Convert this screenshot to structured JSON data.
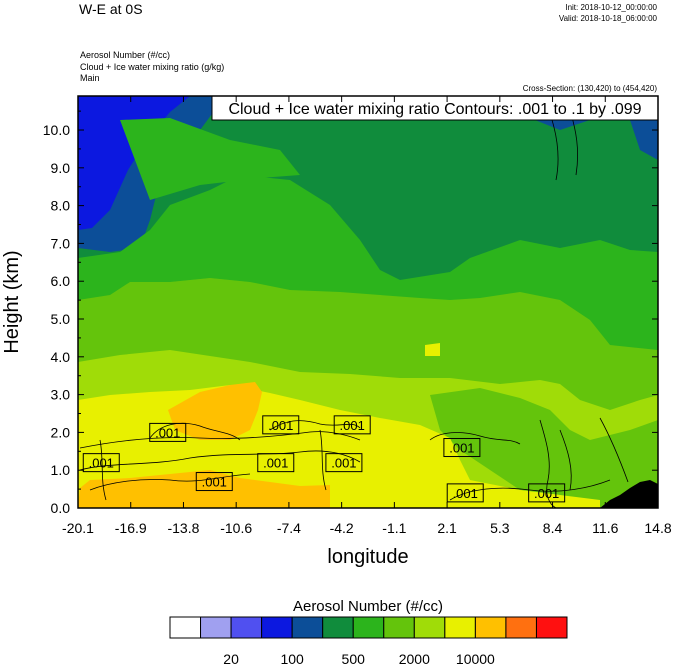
{
  "header": {
    "title": "W-E at 0S",
    "init": "Init: 2018-10-12_00:00:00",
    "valid": "Valid: 2018-10-18_06:00:00",
    "field1": "Aerosol Number   (#/cc)",
    "field2": "Cloud + Ice water mixing ratio   (g/kg)",
    "field3": "Main",
    "cross_section": "Cross-Section: (130,420) to (454,420)"
  },
  "chart_data": {
    "type": "heatmap",
    "title": "W-E at 0S",
    "xlabel": "longitude",
    "ylabel": "Height (km)",
    "xlim": [
      -20.1,
      14.8
    ],
    "ylim": [
      0.0,
      10.9
    ],
    "x_ticks": [
      "-20.1",
      "-16.9",
      "-13.8",
      "-10.6",
      "-7.4",
      "-4.2",
      "-1.1",
      "2.1",
      "5.3",
      "8.4",
      "11.6",
      "14.8"
    ],
    "y_ticks": [
      "0.0",
      "1.0",
      "2.0",
      "3.0",
      "4.0",
      "5.0",
      "6.0",
      "7.0",
      "8.0",
      "9.0",
      "10.0"
    ],
    "contour_legend": "Cloud + Ice water mixing ratio Contours: .001 to .1 by .099",
    "contour_levels": [
      0.001,
      0.1
    ],
    "contour_labels": [
      {
        "text": ".001",
        "lon": -18.7,
        "height": 1.2
      },
      {
        "text": ".001",
        "lon": -14.7,
        "height": 2.0
      },
      {
        "text": ".001",
        "lon": -11.9,
        "height": 0.7
      },
      {
        "text": ".001",
        "lon": -7.9,
        "height": 2.2
      },
      {
        "text": ".001",
        "lon": -8.2,
        "height": 1.2
      },
      {
        "text": ".001",
        "lon": -3.6,
        "height": 2.2
      },
      {
        "text": ".001",
        "lon": -4.1,
        "height": 1.2
      },
      {
        "text": ".001",
        "lon": 3.0,
        "height": 1.6
      },
      {
        "text": ".001",
        "lon": 3.2,
        "height": 0.4
      },
      {
        "text": ".001",
        "lon": 8.1,
        "height": 0.4
      }
    ],
    "colorbar": {
      "title": "Aerosol Number  (#/cc)",
      "colors": [
        "#ffffff",
        "#a0a0f0",
        "#5050f0",
        "#0c18e0",
        "#0c4e98",
        "#108c3c",
        "#2cb41c",
        "#64c40c",
        "#a0dc08",
        "#e8f000",
        "#ffc000",
        "#ff7010",
        "#ff1010"
      ],
      "tick_labels": [
        "20",
        "100",
        "500",
        "2000",
        "10000"
      ]
    },
    "field_colors": {
      "blue": "#0c18e0",
      "dark_blue": "#0c4e98",
      "dark_green": "#108c3c",
      "green": "#2cb41c",
      "mid_green": "#64c40c",
      "light_green": "#a0dc08",
      "yellow": "#e8f000",
      "orange": "#ffc000",
      "terrain": "#000000"
    }
  }
}
